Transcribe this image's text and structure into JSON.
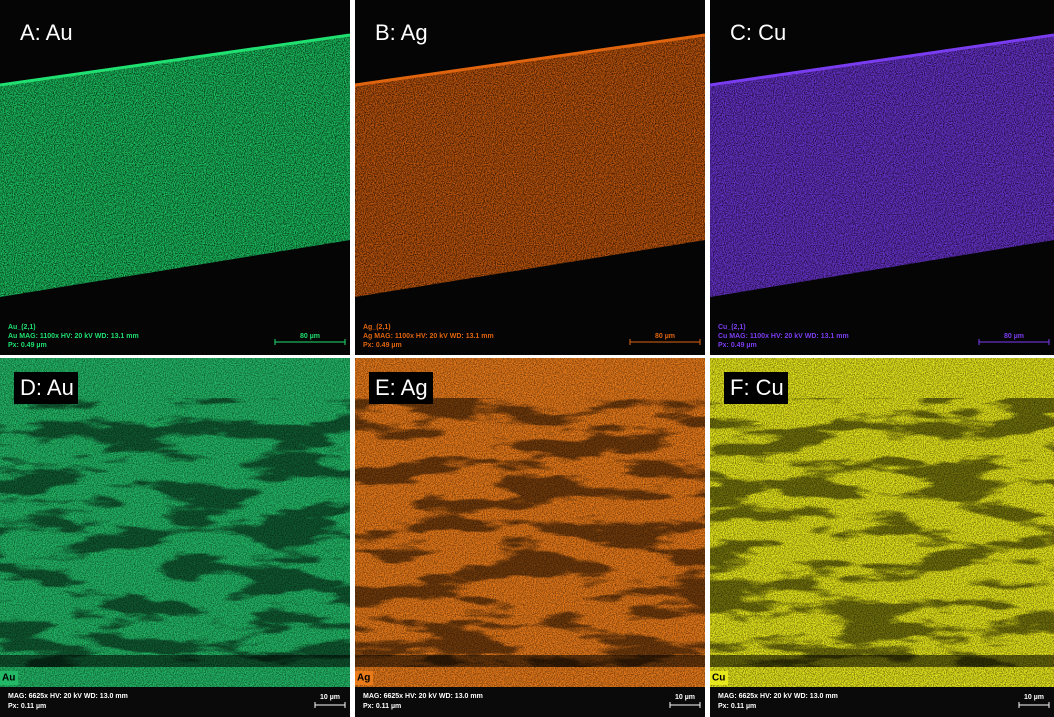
{
  "panels": [
    {
      "label": "A: Au",
      "color": "#1fe070",
      "name": "Au_(2,1)",
      "info": "Au   MAG: 1100x   HV: 20 kV   WD: 13.1 mm",
      "px": "Px: 0.49 µm",
      "scale": "80 µm"
    },
    {
      "label": "B: Ag",
      "color": "#e0640e",
      "name": "Ag_(2,1)",
      "info": "Ag   MAG: 1100x   HV: 20 kV   WD: 13.1 mm",
      "px": "Px: 0.49 µm",
      "scale": "80 µm"
    },
    {
      "label": "C: Cu",
      "color": "#7a3cf0",
      "name": "Cu_(2,1)",
      "info": "Cu   MAG: 1100x   HV: 20 kV   WD: 13.1 mm",
      "px": "Px: 0.49 µm",
      "scale": "80 µm"
    },
    {
      "label": "D: Au",
      "color": "#22b866",
      "tag": "Au",
      "info": "MAG: 6625x   HV: 20 kV   WD: 13.0 mm",
      "px": "Px: 0.11 µm",
      "scale": "10 µm"
    },
    {
      "label": "E: Ag",
      "color": "#e87a1a",
      "tag": "Ag",
      "info": "MAG: 6625x   HV: 20 kV   WD: 13.0 mm",
      "px": "Px: 0.11 µm",
      "scale": "10 µm"
    },
    {
      "label": "F: Cu",
      "color": "#e6e61c",
      "tag": "Cu",
      "info": "MAG: 6625x   HV: 20 kV   WD: 13.0 mm",
      "px": "Px: 0.11 µm",
      "scale": "10 µm"
    }
  ]
}
